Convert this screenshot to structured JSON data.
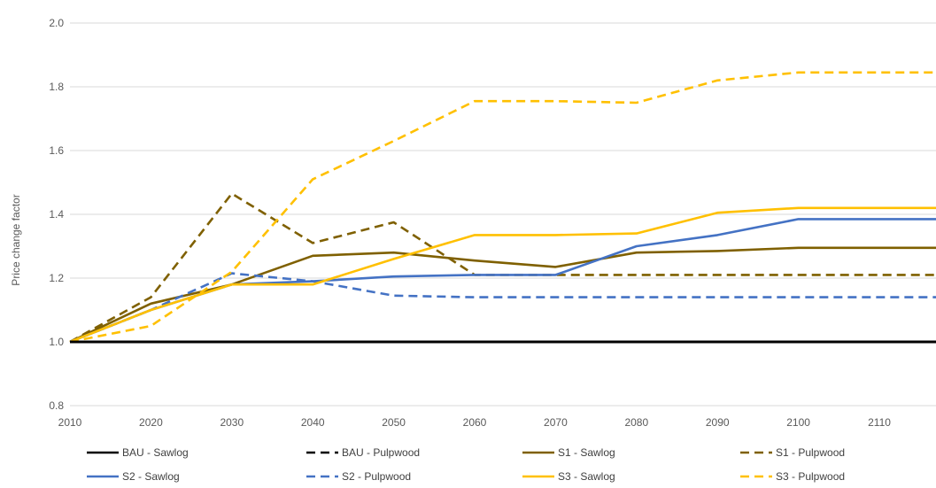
{
  "chart_data": {
    "type": "line",
    "ylabel": "Price change factor",
    "xlabel": "",
    "xlim": [
      2010,
      2117
    ],
    "ylim": [
      0.8,
      2.0
    ],
    "x_ticks": [
      2010,
      2020,
      2030,
      2040,
      2050,
      2060,
      2070,
      2080,
      2090,
      2100,
      2110
    ],
    "y_ticks": [
      0.8,
      1.0,
      1.2,
      1.4,
      1.6,
      1.8,
      2.0
    ],
    "y_tick_labels": [
      "0.8",
      "1.0",
      "1.2",
      "1.4",
      "1.6",
      "1.8",
      "2.0"
    ],
    "grid": "horizontal",
    "legend_position": "bottom",
    "series": [
      {
        "name": "BAU - Sawlog",
        "color": "#000000",
        "dash": "solid",
        "x": [
          2010,
          2020,
          2030,
          2040,
          2050,
          2060,
          2070,
          2080,
          2090,
          2100,
          2110,
          2117
        ],
        "y": [
          1.0,
          1.0,
          1.0,
          1.0,
          1.0,
          1.0,
          1.0,
          1.0,
          1.0,
          1.0,
          1.0,
          1.0
        ]
      },
      {
        "name": "BAU - Pulpwood",
        "color": "#000000",
        "dash": "dashed",
        "x": [
          2010,
          2020,
          2030,
          2040,
          2050,
          2060,
          2070,
          2080,
          2090,
          2100,
          2110,
          2117
        ],
        "y": [
          1.0,
          1.0,
          1.0,
          1.0,
          1.0,
          1.0,
          1.0,
          1.0,
          1.0,
          1.0,
          1.0,
          1.0
        ]
      },
      {
        "name": "S1 - Sawlog",
        "color": "#7f6000",
        "dash": "solid",
        "x": [
          2010,
          2020,
          2030,
          2040,
          2050,
          2060,
          2070,
          2080,
          2090,
          2100,
          2110,
          2117
        ],
        "y": [
          1.0,
          1.12,
          1.18,
          1.27,
          1.28,
          1.255,
          1.235,
          1.28,
          1.285,
          1.295,
          1.295,
          1.295
        ]
      },
      {
        "name": "S1 - Pulpwood",
        "color": "#7f6000",
        "dash": "dashed",
        "x": [
          2010,
          2020,
          2030,
          2040,
          2050,
          2060,
          2070,
          2080,
          2090,
          2100,
          2110,
          2117
        ],
        "y": [
          1.0,
          1.14,
          1.465,
          1.31,
          1.375,
          1.21,
          1.21,
          1.21,
          1.21,
          1.21,
          1.21,
          1.21
        ]
      },
      {
        "name": "S2 - Sawlog",
        "color": "#4472c4",
        "dash": "solid",
        "x": [
          2010,
          2020,
          2030,
          2040,
          2050,
          2060,
          2070,
          2080,
          2090,
          2100,
          2110,
          2117
        ],
        "y": [
          1.0,
          1.1,
          1.18,
          1.19,
          1.205,
          1.21,
          1.21,
          1.3,
          1.335,
          1.385,
          1.385,
          1.385
        ]
      },
      {
        "name": "S2 - Pulpwood",
        "color": "#4472c4",
        "dash": "dashed",
        "x": [
          2010,
          2020,
          2030,
          2040,
          2050,
          2060,
          2070,
          2080,
          2090,
          2100,
          2110,
          2117
        ],
        "y": [
          1.0,
          1.1,
          1.215,
          1.19,
          1.145,
          1.14,
          1.14,
          1.14,
          1.14,
          1.14,
          1.14,
          1.14
        ]
      },
      {
        "name": "S3 - Sawlog",
        "color": "#ffc000",
        "dash": "solid",
        "x": [
          2010,
          2020,
          2030,
          2040,
          2050,
          2060,
          2070,
          2080,
          2090,
          2100,
          2110,
          2117
        ],
        "y": [
          1.0,
          1.1,
          1.18,
          1.18,
          1.26,
          1.335,
          1.335,
          1.34,
          1.405,
          1.42,
          1.42,
          1.42
        ]
      },
      {
        "name": "S3 - Pulpwood",
        "color": "#ffc000",
        "dash": "dashed",
        "x": [
          2010,
          2020,
          2030,
          2040,
          2050,
          2060,
          2070,
          2080,
          2090,
          2100,
          2110,
          2117
        ],
        "y": [
          1.0,
          1.05,
          1.22,
          1.51,
          1.63,
          1.755,
          1.755,
          1.75,
          1.82,
          1.845,
          1.845,
          1.845
        ]
      }
    ]
  }
}
